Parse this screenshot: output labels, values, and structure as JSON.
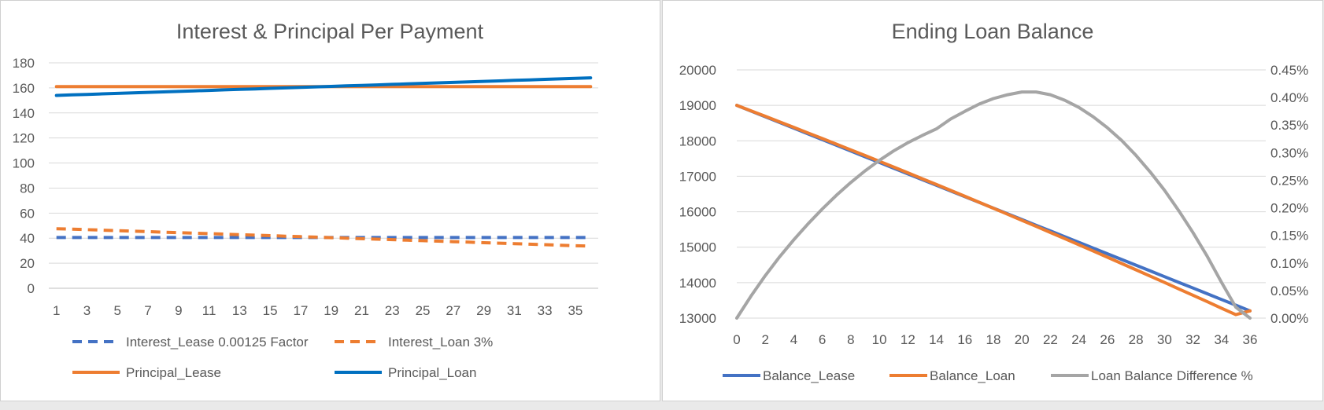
{
  "chart_data": [
    {
      "type": "line",
      "title": "Interest & Principal Per Payment",
      "xlabel": "",
      "ylabel": "",
      "x": [
        1,
        2,
        3,
        4,
        5,
        6,
        7,
        8,
        9,
        10,
        11,
        12,
        13,
        14,
        15,
        16,
        17,
        18,
        19,
        20,
        21,
        22,
        23,
        24,
        25,
        26,
        27,
        28,
        29,
        30,
        31,
        32,
        33,
        34,
        35,
        36
      ],
      "x_tick_labels": [
        "1",
        "3",
        "5",
        "7",
        "9",
        "11",
        "13",
        "15",
        "17",
        "19",
        "21",
        "23",
        "25",
        "27",
        "29",
        "31",
        "33",
        "35"
      ],
      "ylim": [
        0,
        180
      ],
      "y_ticks": [
        0,
        20,
        40,
        60,
        80,
        100,
        120,
        140,
        160,
        180
      ],
      "grid": true,
      "legend_position": "bottom",
      "series": [
        {
          "name": "Interest_Lease 0.00125 Factor",
          "color": "#4472C4",
          "style": "dashed",
          "values": [
            40.5,
            40.5,
            40.5,
            40.5,
            40.5,
            40.5,
            40.5,
            40.5,
            40.5,
            40.5,
            40.5,
            40.5,
            40.5,
            40.5,
            40.5,
            40.5,
            40.5,
            40.5,
            40.5,
            40.5,
            40.5,
            40.5,
            40.5,
            40.5,
            40.5,
            40.5,
            40.5,
            40.5,
            40.5,
            40.5,
            40.5,
            40.5,
            40.5,
            40.5,
            40.5,
            40.5
          ]
        },
        {
          "name": "Interest_Loan 3%",
          "color": "#ED7D31",
          "style": "dashed",
          "values": [
            47.5,
            47.2,
            46.8,
            46.4,
            46.0,
            45.6,
            45.2,
            44.8,
            44.4,
            44.0,
            43.6,
            43.2,
            42.8,
            42.4,
            42.0,
            41.6,
            41.2,
            40.8,
            40.4,
            40.0,
            39.6,
            39.2,
            38.8,
            38.4,
            38.0,
            37.6,
            37.2,
            36.8,
            36.4,
            36.0,
            35.6,
            35.2,
            34.8,
            34.4,
            34.0,
            33.6
          ]
        },
        {
          "name": "Principal_Lease",
          "color": "#ED7D31",
          "style": "solid",
          "values": [
            161,
            161,
            161,
            161,
            161,
            161,
            161,
            161,
            161,
            161,
            161,
            161,
            161,
            161,
            161,
            161,
            161,
            161,
            161,
            161,
            161,
            161,
            161,
            161,
            161,
            161,
            161,
            161,
            161,
            161,
            161,
            161,
            161,
            161,
            161,
            161
          ]
        },
        {
          "name": "Principal_Loan",
          "color": "#0070C0",
          "style": "solid",
          "values": [
            154.0,
            154.4,
            154.8,
            155.2,
            155.6,
            156.0,
            156.4,
            156.8,
            157.2,
            157.6,
            158.0,
            158.4,
            158.8,
            159.2,
            159.6,
            160.0,
            160.4,
            160.8,
            161.2,
            161.6,
            162.0,
            162.4,
            162.8,
            163.2,
            163.6,
            164.0,
            164.4,
            164.8,
            165.2,
            165.6,
            166.0,
            166.4,
            166.8,
            167.2,
            167.6,
            168.0
          ]
        }
      ]
    },
    {
      "type": "line",
      "title": "Ending Loan Balance",
      "xlabel": "",
      "ylabel": "",
      "x": [
        0,
        1,
        2,
        3,
        4,
        5,
        6,
        7,
        8,
        9,
        10,
        11,
        12,
        13,
        14,
        15,
        16,
        17,
        18,
        19,
        20,
        21,
        22,
        23,
        24,
        25,
        26,
        27,
        28,
        29,
        30,
        31,
        32,
        33,
        34,
        35,
        36
      ],
      "x_tick_labels": [
        "0",
        "2",
        "4",
        "6",
        "8",
        "10",
        "12",
        "14",
        "16",
        "18",
        "20",
        "22",
        "24",
        "26",
        "28",
        "30",
        "32",
        "34",
        "36"
      ],
      "ylim": [
        13000,
        20000
      ],
      "y_ticks": [
        13000,
        14000,
        15000,
        16000,
        17000,
        18000,
        19000,
        20000
      ],
      "y2lim": [
        0,
        0.0045
      ],
      "y2_ticks": [
        "0.00%",
        "0.05%",
        "0.10%",
        "0.15%",
        "0.20%",
        "0.25%",
        "0.30%",
        "0.35%",
        "0.40%",
        "0.45%"
      ],
      "grid": true,
      "legend_position": "bottom",
      "series": [
        {
          "name": "Balance_Lease",
          "color": "#4472C4",
          "axis": "left",
          "values": [
            19000,
            18839,
            18678,
            18517,
            18356,
            18195,
            18034,
            17873,
            17712,
            17551,
            17390,
            17229,
            17068,
            16907,
            16746,
            16585,
            16424,
            16263,
            16102,
            15941,
            15780,
            15619,
            15458,
            15297,
            15136,
            14975,
            14814,
            14653,
            14492,
            14331,
            14170,
            14009,
            13848,
            13687,
            13526,
            13365,
            13204
          ]
        },
        {
          "name": "Balance_Loan",
          "color": "#ED7D31",
          "axis": "left",
          "values": [
            19000,
            18846,
            18692,
            18536,
            18380,
            18222,
            18064,
            17905,
            17746,
            17585,
            17423,
            17261,
            17097,
            16933,
            16768,
            16602,
            16435,
            16267,
            16098,
            15929,
            15758,
            15587,
            15414,
            15241,
            15067,
            14892,
            14717,
            14540,
            14363,
            14184,
            14005,
            13825,
            13644,
            13463,
            13280,
            13097,
            13204
          ]
        },
        {
          "name": "Loan Balance Difference %",
          "color": "#A5A5A5",
          "axis": "right",
          "values": [
            0.0,
            0.0004,
            0.00077,
            0.00111,
            0.00142,
            0.00171,
            0.00198,
            0.00223,
            0.00246,
            0.00267,
            0.00286,
            0.00303,
            0.00318,
            0.00331,
            0.00343,
            0.00361,
            0.00375,
            0.00388,
            0.00398,
            0.00405,
            0.0041,
            0.0041,
            0.00405,
            0.00395,
            0.00382,
            0.00365,
            0.00345,
            0.00322,
            0.00295,
            0.00265,
            0.00232,
            0.00195,
            0.00155,
            0.00112,
            0.00065,
            0.0002,
            0.0
          ]
        }
      ]
    }
  ]
}
